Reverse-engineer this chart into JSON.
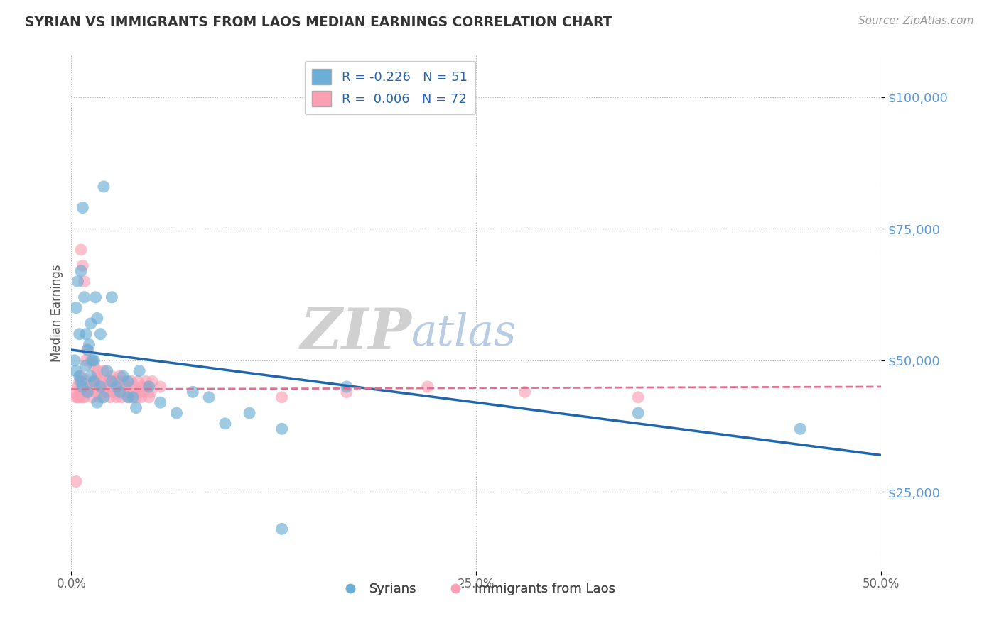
{
  "title": "SYRIAN VS IMMIGRANTS FROM LAOS MEDIAN EARNINGS CORRELATION CHART",
  "source": "Source: ZipAtlas.com",
  "ylabel": "Median Earnings",
  "yticks": [
    25000,
    50000,
    75000,
    100000
  ],
  "ytick_labels": [
    "$25,000",
    "$50,000",
    "$75,000",
    "$100,000"
  ],
  "xmin": 0.0,
  "xmax": 0.5,
  "ymin": 10000,
  "ymax": 108000,
  "blue_R": -0.226,
  "blue_N": 51,
  "pink_R": 0.006,
  "pink_N": 72,
  "blue_color": "#6baed6",
  "pink_color": "#fb9fb4",
  "blue_line_color": "#2166ac",
  "pink_line_color": "#e07090",
  "title_color": "#333333",
  "axis_label_color": "#5b9bd5",
  "watermark_zip_color": "#d0d0d0",
  "watermark_atlas_color": "#b8cce4",
  "legend_blue_label": "R = -0.226   N = 51",
  "legend_pink_label": "R =  0.006   N = 72",
  "legend_syrians": "Syrians",
  "legend_laos": "Immigrants from Laos",
  "blue_line_x0": 0.0,
  "blue_line_x1": 0.5,
  "blue_line_y0": 52000,
  "blue_line_y1": 32000,
  "pink_line_x0": 0.0,
  "pink_line_x1": 0.5,
  "pink_line_y0": 44500,
  "pink_line_y1": 45000,
  "blue_x": [
    0.005,
    0.01,
    0.02,
    0.007,
    0.003,
    0.004,
    0.008,
    0.006,
    0.012,
    0.015,
    0.009,
    0.011,
    0.013,
    0.016,
    0.018,
    0.014,
    0.022,
    0.025,
    0.028,
    0.032,
    0.035,
    0.038,
    0.042,
    0.048,
    0.055,
    0.065,
    0.075,
    0.085,
    0.095,
    0.11,
    0.13,
    0.17,
    0.002,
    0.003,
    0.005,
    0.006,
    0.007,
    0.009,
    0.01,
    0.012,
    0.014,
    0.016,
    0.018,
    0.02,
    0.025,
    0.03,
    0.035,
    0.04,
    0.35,
    0.45,
    0.13
  ],
  "blue_y": [
    55000,
    52000,
    83000,
    79000,
    60000,
    65000,
    62000,
    67000,
    57000,
    62000,
    55000,
    53000,
    50000,
    58000,
    55000,
    50000,
    48000,
    62000,
    45000,
    47000,
    46000,
    43000,
    48000,
    45000,
    42000,
    40000,
    44000,
    43000,
    38000,
    40000,
    37000,
    45000,
    50000,
    48000,
    47000,
    46000,
    45000,
    49000,
    44000,
    47000,
    46000,
    42000,
    45000,
    43000,
    46000,
    44000,
    43000,
    41000,
    40000,
    37000,
    18000
  ],
  "pink_x": [
    0.002,
    0.003,
    0.004,
    0.005,
    0.006,
    0.007,
    0.008,
    0.009,
    0.01,
    0.011,
    0.012,
    0.013,
    0.014,
    0.015,
    0.016,
    0.017,
    0.018,
    0.019,
    0.02,
    0.021,
    0.022,
    0.023,
    0.024,
    0.025,
    0.026,
    0.027,
    0.028,
    0.029,
    0.03,
    0.031,
    0.032,
    0.033,
    0.034,
    0.035,
    0.036,
    0.037,
    0.038,
    0.039,
    0.04,
    0.041,
    0.042,
    0.043,
    0.044,
    0.045,
    0.046,
    0.047,
    0.048,
    0.049,
    0.05,
    0.055,
    0.006,
    0.007,
    0.008,
    0.009,
    0.01,
    0.012,
    0.014,
    0.016,
    0.018,
    0.02,
    0.025,
    0.03,
    0.17,
    0.13,
    0.22,
    0.28,
    0.35,
    0.005,
    0.003,
    0.004,
    0.006,
    0.008
  ],
  "pink_y": [
    44000,
    43000,
    45000,
    46000,
    47000,
    43000,
    44000,
    45000,
    46000,
    44000,
    45000,
    43000,
    46000,
    44000,
    47000,
    45000,
    43000,
    44000,
    46000,
    45000,
    44000,
    46000,
    43000,
    45000,
    44000,
    46000,
    43000,
    45000,
    47000,
    43000,
    44000,
    46000,
    45000,
    44000,
    43000,
    46000,
    44000,
    45000,
    43000,
    46000,
    44000,
    43000,
    45000,
    44000,
    46000,
    45000,
    43000,
    44000,
    46000,
    45000,
    71000,
    68000,
    65000,
    50000,
    52000,
    50000,
    49000,
    48000,
    46000,
    48000,
    47000,
    46000,
    44000,
    43000,
    45000,
    44000,
    43000,
    43000,
    27000,
    43000,
    44000,
    43000
  ]
}
